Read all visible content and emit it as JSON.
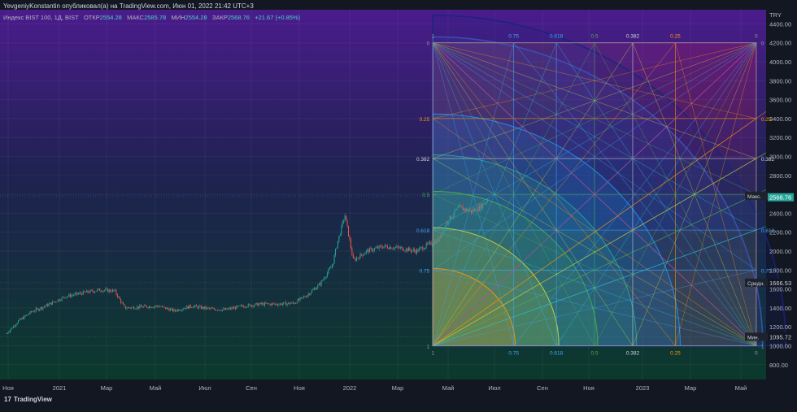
{
  "header": {
    "publisher": "YevgeniyKonstantin опубликовал(а) на TradingView.com, Июн 01, 2022 21:42 UTC+3"
  },
  "symbol_info": {
    "name": "Индекс BIST 100, 1Д, BIST",
    "open_label": "ОТКР",
    "open": "2554.28",
    "high_label": "МАКС",
    "high": "2585.78",
    "low_label": "МИН",
    "low": "2554.28",
    "close_label": "ЗАКР",
    "close": "2568.76",
    "change": "+21.67 (+0.85%)"
  },
  "footer": {
    "brand": "TradingView"
  },
  "colors": {
    "bg_top": "#4a1c8c",
    "bg_bottom": "#0d3b2e",
    "candle_up": "#26a69a",
    "candle_down": "#ef5350",
    "price_badge": "#26a69a"
  },
  "chart_data": {
    "type": "candlestick",
    "currency": "TRY",
    "x_ticks": [
      "Ноя",
      "2021",
      "Мар",
      "Май",
      "Июл",
      "Сен",
      "Ноя",
      "2022",
      "Мар",
      "Май",
      "Июл",
      "Сен",
      "Ноя",
      "2023",
      "Мар",
      "Май"
    ],
    "y_ticks": [
      800,
      1000,
      1200,
      1400,
      1600,
      1800,
      2000,
      2200,
      2400,
      2600,
      2800,
      3000,
      3200,
      3400,
      3600,
      3800,
      4000,
      4200,
      4400
    ],
    "ylim": [
      700,
      4500
    ],
    "price_path": {
      "x": [
        "2020-11-01",
        "2020-11-15",
        "2020-12-01",
        "2020-12-20",
        "2021-01-10",
        "2021-02-01",
        "2021-02-20",
        "2021-03-10",
        "2021-03-22",
        "2021-04-10",
        "2021-05-01",
        "2021-05-20",
        "2021-06-10",
        "2021-07-01",
        "2021-07-20",
        "2021-08-10",
        "2021-09-01",
        "2021-09-20",
        "2021-10-10",
        "2021-10-25",
        "2021-11-10",
        "2021-11-25",
        "2021-12-01",
        "2021-12-10",
        "2021-12-20",
        "2022-01-05",
        "2022-01-25",
        "2022-02-15",
        "2022-03-05",
        "2022-03-20",
        "2022-04-01",
        "2022-04-10",
        "2022-04-25",
        "2022-05-10",
        "2022-05-20",
        "2022-06-01"
      ],
      "y": [
        1130,
        1260,
        1360,
        1430,
        1520,
        1560,
        1590,
        1580,
        1400,
        1410,
        1420,
        1370,
        1420,
        1390,
        1380,
        1420,
        1440,
        1440,
        1450,
        1530,
        1650,
        1850,
        2090,
        2380,
        1900,
        2000,
        2050,
        2030,
        2000,
        2070,
        2120,
        2300,
        2460,
        2420,
        2460,
        2568.76
      ]
    },
    "price_labels": [
      {
        "name": "Макс.",
        "value": "2585.78"
      },
      {
        "name": "",
        "value": "2568.76"
      },
      {
        "name": "Средн.",
        "value": "1666.53"
      },
      {
        "name": "Мин.",
        "value": "1095.72"
      }
    ],
    "gann_box": {
      "start": "2022-03-25",
      "end": "2023-04-15",
      "price_bottom": 1000,
      "price_top": 4200,
      "levels": [
        {
          "label": "0",
          "value": 0,
          "color": "#9598a1"
        },
        {
          "label": "0.25",
          "value": 0.25,
          "color": "#ff9800"
        },
        {
          "label": "0.382",
          "value": 0.382,
          "color": "#d1d4dc"
        },
        {
          "label": "0.5",
          "value": 0.5,
          "color": "#4caf50"
        },
        {
          "label": "0.618",
          "value": 0.618,
          "color": "#42a5f5"
        },
        {
          "label": "0.75",
          "value": 0.75,
          "color": "#42a5f5"
        },
        {
          "label": "1",
          "value": 1,
          "color": "#9598a1"
        }
      ]
    }
  }
}
